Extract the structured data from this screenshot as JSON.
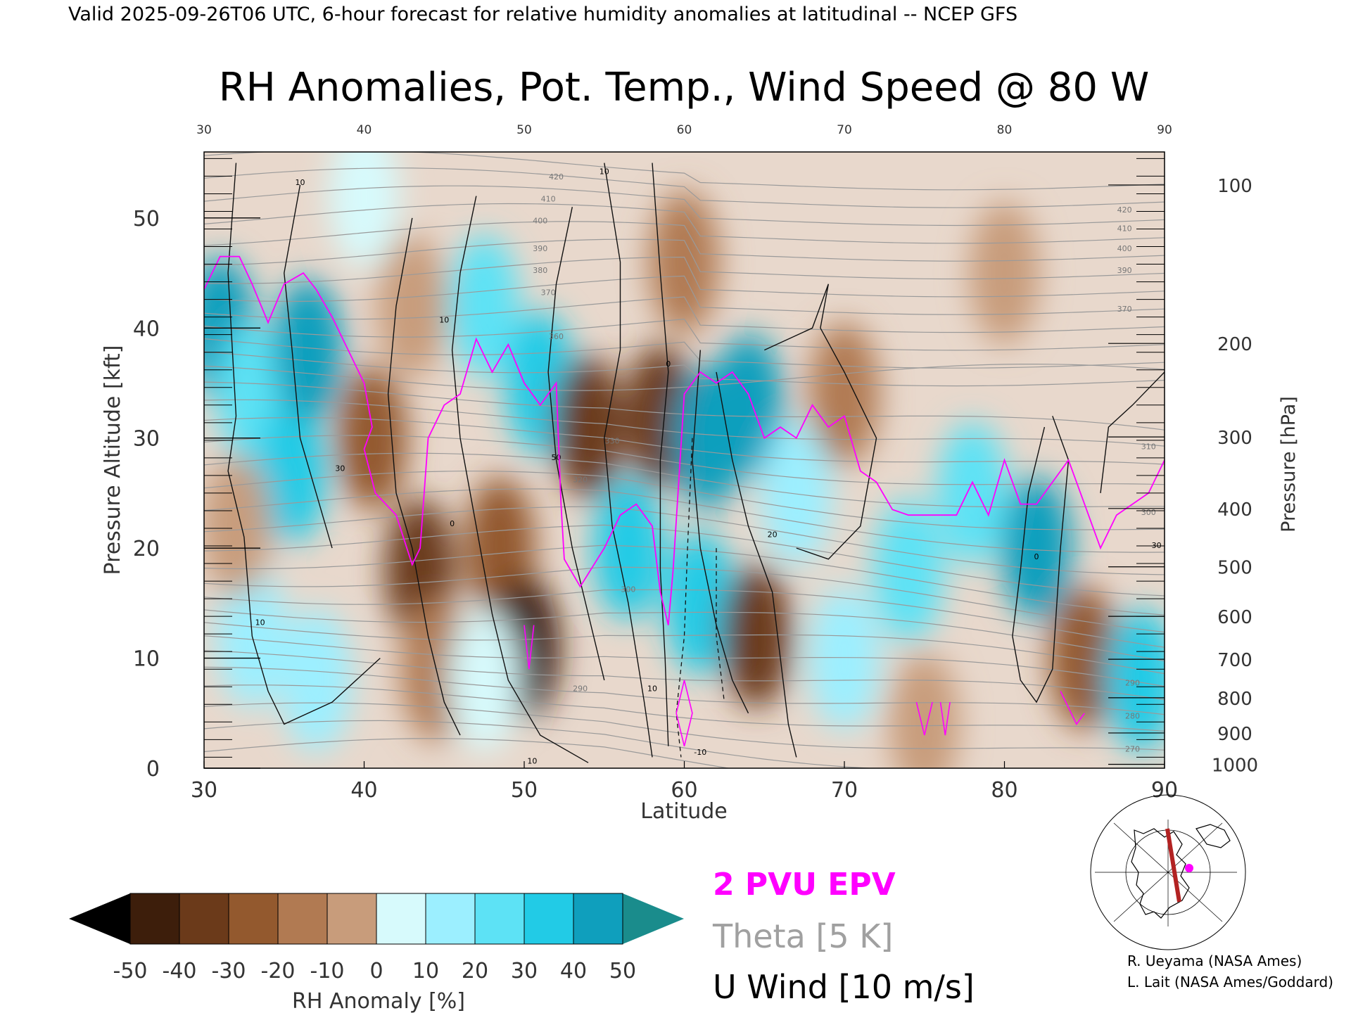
{
  "header": {
    "valid_line": "Valid 2025-09-26T06 UTC, 6-hour forecast for relative humidity anomalies at latitudinal -- NCEP GFS"
  },
  "chart_data": {
    "type": "heatmap",
    "title": "RH Anomalies, Pot. Temp., Wind Speed @ 80 W",
    "xlabel": "Latitude",
    "ylabel_left": "Pressure Altitude [kft]",
    "ylabel_right": "Pressure [hPa]",
    "xlim": [
      30,
      90
    ],
    "ylim": [
      0,
      56
    ],
    "x_ticks": [
      "30",
      "40",
      "50",
      "60",
      "70",
      "80",
      "90"
    ],
    "y_ticks": [
      "0",
      "10",
      "20",
      "30",
      "40",
      "50"
    ],
    "pressure_ticks": [
      {
        "label": "100",
        "kft": 53.0
      },
      {
        "label": "200",
        "kft": 38.6
      },
      {
        "label": "300",
        "kft": 30.1
      },
      {
        "label": "400",
        "kft": 23.6
      },
      {
        "label": "500",
        "kft": 18.3
      },
      {
        "label": "600",
        "kft": 13.8
      },
      {
        "label": "700",
        "kft": 9.9
      },
      {
        "label": "800",
        "kft": 6.4
      },
      {
        "label": "900",
        "kft": 3.2
      },
      {
        "label": "1000",
        "kft": 0.35
      }
    ],
    "rh_anomaly_fields": [
      {
        "lat": 31,
        "kft": 40,
        "anom": 45
      },
      {
        "lat": 33,
        "kft": 34,
        "anom": 25
      },
      {
        "lat": 35.5,
        "kft": 27,
        "anom": 40
      },
      {
        "lat": 36.5,
        "kft": 38,
        "anom": 45
      },
      {
        "lat": 33,
        "kft": 12,
        "anom": 15
      },
      {
        "lat": 37,
        "kft": 8,
        "anom": 20
      },
      {
        "lat": 32,
        "kft": 22,
        "anom": -15
      },
      {
        "lat": 40.5,
        "kft": 30,
        "anom": -30
      },
      {
        "lat": 43.5,
        "kft": 18,
        "anom": -40
      },
      {
        "lat": 44.5,
        "kft": 9,
        "anom": -20
      },
      {
        "lat": 43,
        "kft": 42,
        "anom": -15
      },
      {
        "lat": 47.5,
        "kft": 42,
        "anom": 25
      },
      {
        "lat": 48.5,
        "kft": 20,
        "anom": -35
      },
      {
        "lat": 50,
        "kft": 11,
        "anom": -50
      },
      {
        "lat": 51,
        "kft": 35,
        "anom": 40
      },
      {
        "lat": 47.5,
        "kft": 8,
        "anom": 10
      },
      {
        "lat": 54,
        "kft": 31,
        "anom": -45
      },
      {
        "lat": 56.5,
        "kft": 20,
        "anom": 35
      },
      {
        "lat": 58.5,
        "kft": 32,
        "anom": -40
      },
      {
        "lat": 61.5,
        "kft": 30,
        "anom": 50
      },
      {
        "lat": 61,
        "kft": 15,
        "anom": 35
      },
      {
        "lat": 64.5,
        "kft": 12,
        "anom": -45
      },
      {
        "lat": 64,
        "kft": 33,
        "anom": 45
      },
      {
        "lat": 67,
        "kft": 25,
        "anom": 20
      },
      {
        "lat": 70,
        "kft": 10,
        "anom": 20
      },
      {
        "lat": 74,
        "kft": 18,
        "anom": 25
      },
      {
        "lat": 75,
        "kft": 4,
        "anom": -15
      },
      {
        "lat": 78,
        "kft": 25,
        "anom": 25
      },
      {
        "lat": 82,
        "kft": 20,
        "anom": 45
      },
      {
        "lat": 85,
        "kft": 10,
        "anom": -35
      },
      {
        "lat": 88.5,
        "kft": 8,
        "anom": 35
      },
      {
        "lat": 70,
        "kft": 34,
        "anom": -20
      },
      {
        "lat": 60,
        "kft": 46,
        "anom": -20
      },
      {
        "lat": 80,
        "kft": 45,
        "anom": -15
      },
      {
        "lat": 40,
        "kft": 52,
        "anom": 5
      }
    ],
    "theta_labels": [
      {
        "text": "420",
        "lat": 52,
        "kft": 53.5
      },
      {
        "text": "410",
        "lat": 51.5,
        "kft": 51.5
      },
      {
        "text": "400",
        "lat": 51,
        "kft": 49.5
      },
      {
        "text": "390",
        "lat": 51,
        "kft": 47
      },
      {
        "text": "380",
        "lat": 51,
        "kft": 45
      },
      {
        "text": "370",
        "lat": 51.5,
        "kft": 43
      },
      {
        "text": "360",
        "lat": 52,
        "kft": 39
      },
      {
        "text": "330",
        "lat": 55.5,
        "kft": 29.5
      },
      {
        "text": "320",
        "lat": 53.5,
        "kft": 26
      },
      {
        "text": "300",
        "lat": 56.5,
        "kft": 16
      },
      {
        "text": "290",
        "lat": 53.5,
        "kft": 7
      },
      {
        "text": "420",
        "lat": 87.5,
        "kft": 50.5
      },
      {
        "text": "410",
        "lat": 87.5,
        "kft": 48.8
      },
      {
        "text": "400",
        "lat": 87.5,
        "kft": 47
      },
      {
        "text": "390",
        "lat": 87.5,
        "kft": 45
      },
      {
        "text": "370",
        "lat": 87.5,
        "kft": 41.5
      },
      {
        "text": "310",
        "lat": 89,
        "kft": 29
      },
      {
        "text": "300",
        "lat": 89,
        "kft": 23
      },
      {
        "text": "290",
        "lat": 88,
        "kft": 7.5
      },
      {
        "text": "280",
        "lat": 88,
        "kft": 4.5
      },
      {
        "text": "270",
        "lat": 88,
        "kft": 1.5
      }
    ],
    "wind_labels": [
      {
        "text": "10",
        "lat": 36,
        "kft": 53
      },
      {
        "text": "10",
        "lat": 55,
        "kft": 54
      },
      {
        "text": "10",
        "lat": 45,
        "kft": 40.5
      },
      {
        "text": "30",
        "lat": 38.5,
        "kft": 27
      },
      {
        "text": "10",
        "lat": 33.5,
        "kft": 13
      },
      {
        "text": "0",
        "lat": 45.5,
        "kft": 22
      },
      {
        "text": "0",
        "lat": 59,
        "kft": 36.5
      },
      {
        "text": "20",
        "lat": 65.5,
        "kft": 21
      },
      {
        "text": "10",
        "lat": 58,
        "kft": 7
      },
      {
        "text": "0",
        "lat": 82,
        "kft": 19
      },
      {
        "text": "-10",
        "lat": 61,
        "kft": 1.2
      },
      {
        "text": "10",
        "lat": 50.5,
        "kft": 0.4
      },
      {
        "text": "50",
        "lat": 52,
        "kft": 28
      },
      {
        "text": "30",
        "lat": 89.5,
        "kft": 20
      }
    ],
    "epv_2pvu_line": [
      [
        30,
        43.5
      ],
      [
        31,
        46.5
      ],
      [
        32.2,
        46.5
      ],
      [
        33,
        44
      ],
      [
        34,
        40.5
      ],
      [
        35,
        44
      ],
      [
        36.2,
        45
      ],
      [
        37,
        43.5
      ],
      [
        38,
        41
      ],
      [
        39,
        38
      ],
      [
        40,
        35
      ],
      [
        40.5,
        31
      ],
      [
        40,
        29
      ],
      [
        40.7,
        25
      ],
      [
        42,
        23
      ],
      [
        43,
        18.5
      ],
      [
        43.5,
        20
      ],
      [
        44,
        30
      ],
      [
        45,
        33
      ],
      [
        46,
        34
      ],
      [
        47,
        39
      ],
      [
        48,
        36
      ],
      [
        49,
        38.5
      ],
      [
        50,
        35
      ],
      [
        51,
        33
      ],
      [
        52,
        35
      ],
      [
        52.3,
        24
      ],
      [
        52.5,
        19
      ],
      [
        53.5,
        16.5
      ],
      [
        55,
        20
      ],
      [
        56,
        23
      ],
      [
        57,
        24
      ],
      [
        58,
        22
      ],
      [
        58.5,
        16
      ],
      [
        59,
        13
      ],
      [
        59.3,
        18
      ],
      [
        60,
        34
      ],
      [
        61,
        36
      ],
      [
        62,
        35
      ],
      [
        63,
        36
      ],
      [
        64,
        34
      ],
      [
        65,
        30
      ],
      [
        66,
        31
      ],
      [
        67,
        30
      ],
      [
        68,
        33
      ],
      [
        69,
        31
      ],
      [
        70,
        32
      ],
      [
        71,
        27
      ],
      [
        72,
        26
      ],
      [
        73,
        23.5
      ],
      [
        74,
        23
      ],
      [
        75,
        23
      ],
      [
        76,
        23
      ],
      [
        77,
        23
      ],
      [
        78,
        26
      ],
      [
        79,
        23
      ],
      [
        80,
        28
      ],
      [
        81,
        24
      ],
      [
        82,
        24
      ],
      [
        83,
        26
      ],
      [
        84,
        28
      ],
      [
        85,
        24
      ],
      [
        86,
        20
      ],
      [
        87,
        23
      ],
      [
        88,
        24
      ],
      [
        89,
        25
      ],
      [
        90,
        28
      ]
    ],
    "colorbar": {
      "label": "RH Anomaly [%]",
      "ticks": [
        "-50",
        "-40",
        "-30",
        "-20",
        "-10",
        "0",
        "10",
        "20",
        "30",
        "40",
        "50"
      ],
      "colors": [
        "#3d1e0b",
        "#6b3a1a",
        "#93592e",
        "#b17a52",
        "#c89c7b",
        "#e8d8cc",
        "#d7fafc",
        "#9cefff",
        "#5de2f5",
        "#22cbe6",
        "#0f9fbd"
      ],
      "under_color": "#000000",
      "over_color": "#1a8c8c"
    }
  },
  "legend": {
    "epv": "2 PVU EPV",
    "theta": "Theta [5 K]",
    "uwind": "U Wind [10 m/s]",
    "epv_color": "#ff00ff",
    "theta_color": "#a0a0a0",
    "uwind_color": "#000000"
  },
  "credits": {
    "line1": "R. Ueyama (NASA Ames)",
    "line2": "L. Lait (NASA Ames/Goddard)"
  },
  "inset_map": {
    "transect_color": "#b22222",
    "marker_color": "#ff00ff"
  }
}
